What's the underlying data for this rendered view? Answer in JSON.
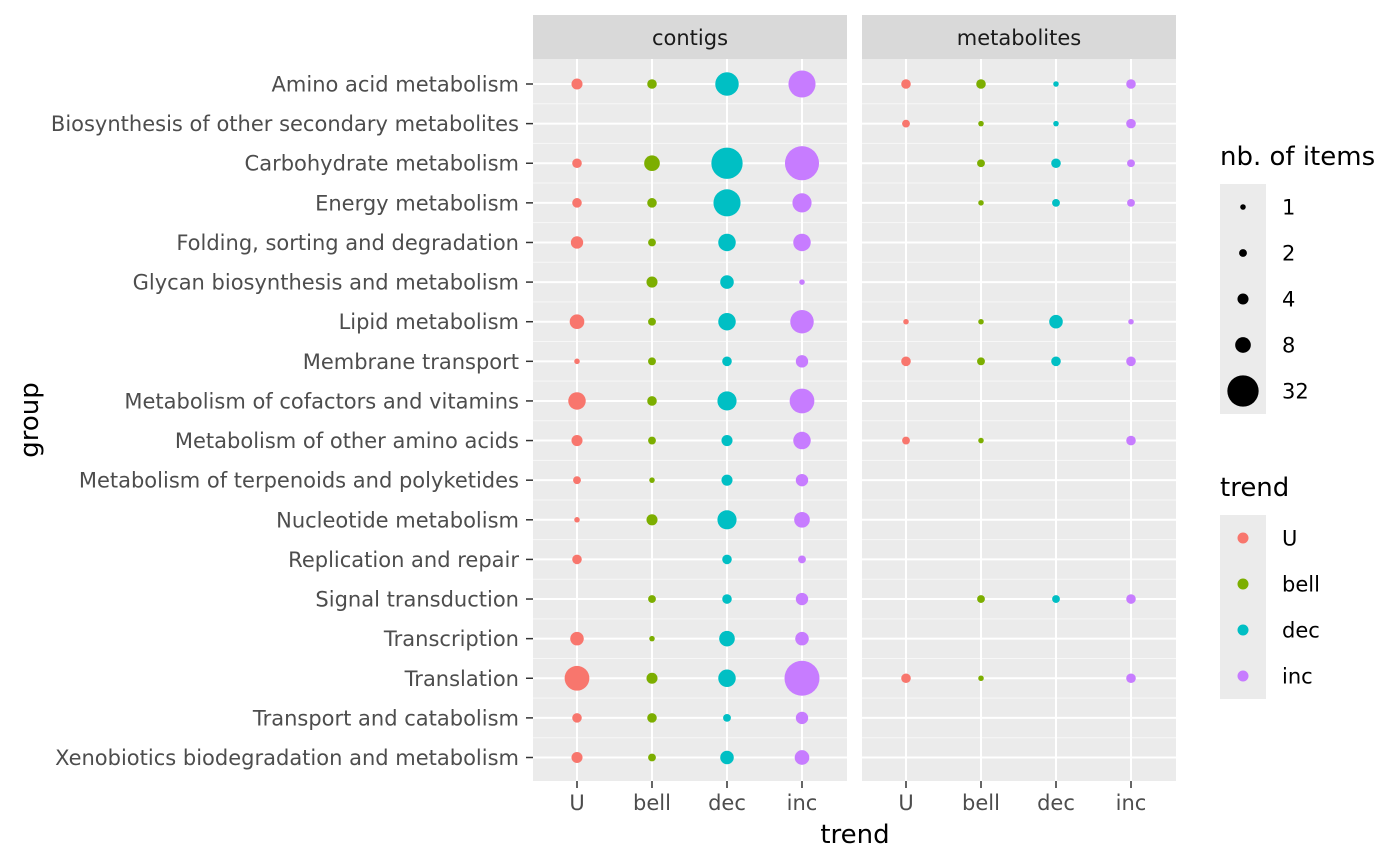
{
  "chart_data": {
    "type": "scatter",
    "facets": [
      "contigs",
      "metabolites"
    ],
    "x_categories": [
      "U",
      "bell",
      "dec",
      "inc"
    ],
    "y_categories": [
      "Amino acid metabolism",
      "Biosynthesis of other secondary metabolites",
      "Carbohydrate metabolism",
      "Energy metabolism",
      "Folding, sorting and degradation",
      "Glycan biosynthesis and metabolism",
      "Lipid metabolism",
      "Membrane transport",
      "Metabolism of cofactors and vitamins",
      "Metabolism of other amino acids",
      "Metabolism of terpenoids and polyketides",
      "Nucleotide metabolism",
      "Replication and repair",
      "Signal transduction",
      "Transcription",
      "Translation",
      "Transport and catabolism",
      "Xenobiotics biodegradation and metabolism"
    ],
    "xlabel": "trend",
    "ylabel": "group",
    "size_legend": {
      "title": "nb. of items",
      "values": [
        1,
        2,
        4,
        8,
        32
      ]
    },
    "color_legend": {
      "title": "trend",
      "entries": [
        {
          "label": "U",
          "color": "#F8766D"
        },
        {
          "label": "bell",
          "color": "#7CAE00"
        },
        {
          "label": "dec",
          "color": "#00BFC4"
        },
        {
          "label": "inc",
          "color": "#C77CFF"
        }
      ]
    },
    "points": {
      "contigs": [
        [
          4,
          3,
          18,
          24
        ],
        [
          null,
          null,
          null,
          null
        ],
        [
          3,
          8,
          32,
          38
        ],
        [
          3,
          3,
          24,
          12
        ],
        [
          5,
          2,
          10,
          10
        ],
        [
          null,
          4,
          6,
          1
        ],
        [
          7,
          2,
          10,
          18
        ],
        [
          1,
          2,
          3,
          5
        ],
        [
          10,
          3,
          12,
          20
        ],
        [
          4,
          2,
          4,
          10
        ],
        [
          2,
          1,
          4,
          5
        ],
        [
          1,
          4,
          12,
          8
        ],
        [
          3,
          null,
          3,
          2
        ],
        [
          null,
          2,
          3,
          5
        ],
        [
          6,
          1,
          8,
          6
        ],
        [
          20,
          4,
          10,
          40
        ],
        [
          3,
          3,
          2,
          5
        ],
        [
          4,
          2,
          6,
          7
        ]
      ],
      "metabolites": [
        [
          3,
          3,
          1,
          3
        ],
        [
          2,
          1,
          1,
          3
        ],
        [
          null,
          2,
          3,
          2
        ],
        [
          null,
          1,
          2,
          2
        ],
        [
          null,
          null,
          null,
          null
        ],
        [
          null,
          null,
          null,
          null
        ],
        [
          1,
          1,
          6,
          1
        ],
        [
          3,
          2,
          3,
          3
        ],
        [
          null,
          null,
          null,
          null
        ],
        [
          2,
          1,
          null,
          3
        ],
        [
          null,
          null,
          null,
          null
        ],
        [
          null,
          null,
          null,
          null
        ],
        [
          null,
          null,
          null,
          null
        ],
        [
          null,
          2,
          2,
          3
        ],
        [
          null,
          null,
          null,
          null
        ],
        [
          3,
          1,
          null,
          3
        ],
        [
          null,
          null,
          null,
          null
        ],
        [
          null,
          null,
          null,
          null
        ]
      ]
    }
  }
}
